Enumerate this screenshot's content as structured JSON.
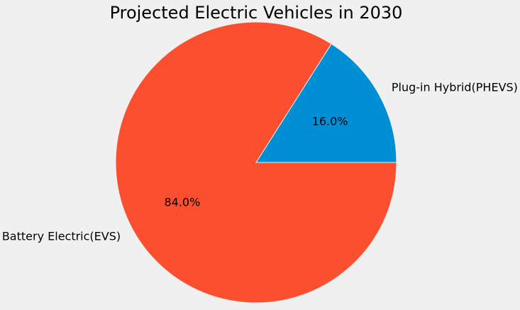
{
  "chart_data": {
    "type": "pie",
    "title": "Projected Electric Vehicles in 2030",
    "background_color": "#f0f0f0",
    "slices": [
      {
        "label": "Plug-in Hybrid(PHEVS)",
        "value": 16.0,
        "percent_label": "16.0%",
        "color": "#008fd5"
      },
      {
        "label": "Battery Electric(EVS)",
        "value": 84.0,
        "percent_label": "84.0%",
        "color": "#fc4f30"
      }
    ],
    "start_angle_deg": 0,
    "direction": "counterclockwise",
    "wedge_edge_color": "#f0f0f0"
  }
}
